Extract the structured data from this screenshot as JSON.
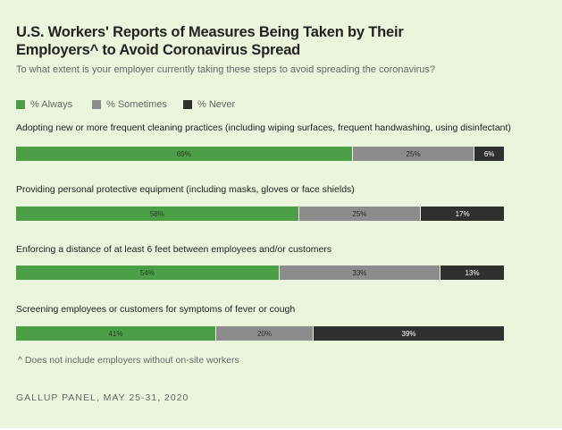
{
  "chart_data": {
    "type": "bar",
    "orientation": "horizontal",
    "stacked": true,
    "title": "U.S. Workers' Reports of Measures Being Taken by Their Employers^ to Avoid Coronavirus Spread",
    "subtitle": "To what extent is your employer currently taking these steps to avoid spreading the coronavirus?",
    "legend_placement": "top-left",
    "grid": false,
    "xlim": [
      0,
      100
    ],
    "categories": [
      "Adopting new or more frequent cleaning practices (including wiping surfaces, frequent handwashing, using disinfectant)",
      "Providing personal protective equipment (including masks, gloves or face shields)",
      "Enforcing a distance of at least 6 feet between employees and/or customers",
      "Screening employees or customers for symptoms of fever or cough"
    ],
    "series": [
      {
        "name": "% Always",
        "color": "#4c9f46",
        "text_color": "#1f3a1c",
        "values": [
          69,
          58,
          54,
          41
        ]
      },
      {
        "name": "% Sometimes",
        "color": "#8b8d8d",
        "text_color": "#2a2a2a",
        "values": [
          25,
          25,
          33,
          20
        ]
      },
      {
        "name": "% Never",
        "color": "#2f312e",
        "text_color": "#ffffff",
        "values": [
          6,
          17,
          13,
          39
        ]
      }
    ],
    "footnote": "^ Does not include employers without on-site workers",
    "source": "GALLUP PANEL, MAY 25-31, 2020"
  }
}
